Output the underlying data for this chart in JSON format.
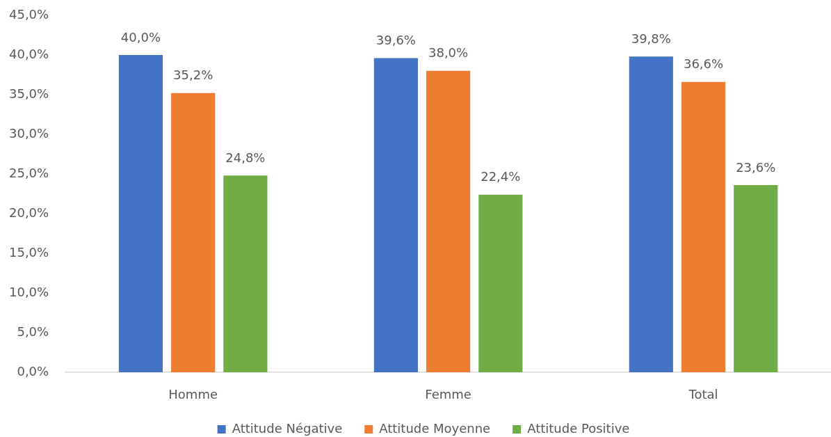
{
  "chart_data": {
    "type": "bar",
    "categories": [
      "Homme",
      "Femme",
      "Total"
    ],
    "series": [
      {
        "name": "Attitude Négative",
        "color": "#4472c4",
        "values": [
          40.0,
          39.6,
          39.8
        ],
        "value_labels": [
          "40,0%",
          "39,6%",
          "39,8%"
        ]
      },
      {
        "name": "Attitude Moyenne",
        "color": "#ed7d31",
        "values": [
          35.2,
          38.0,
          36.6
        ],
        "value_labels": [
          "35,2%",
          "38,0%",
          "36,6%"
        ]
      },
      {
        "name": "Attitude Positive",
        "color": "#70ad47",
        "values": [
          24.8,
          22.4,
          23.6
        ],
        "value_labels": [
          "24,8%",
          "22,4%",
          "23,6%"
        ]
      }
    ],
    "ylim": [
      0,
      45
    ],
    "yticks": [
      {
        "value": 0,
        "label": "0,0%"
      },
      {
        "value": 5,
        "label": "5,0%"
      },
      {
        "value": 10,
        "label": "10,0%"
      },
      {
        "value": 15,
        "label": "15,0%"
      },
      {
        "value": 20,
        "label": "20,0%"
      },
      {
        "value": 25,
        "label": "25,0%"
      },
      {
        "value": 30,
        "label": "30,0%"
      },
      {
        "value": 35,
        "label": "35,0%"
      },
      {
        "value": 40,
        "label": "40,0%"
      },
      {
        "value": 45,
        "label": "45,0%"
      }
    ],
    "grid": false,
    "legend": "bottom"
  }
}
